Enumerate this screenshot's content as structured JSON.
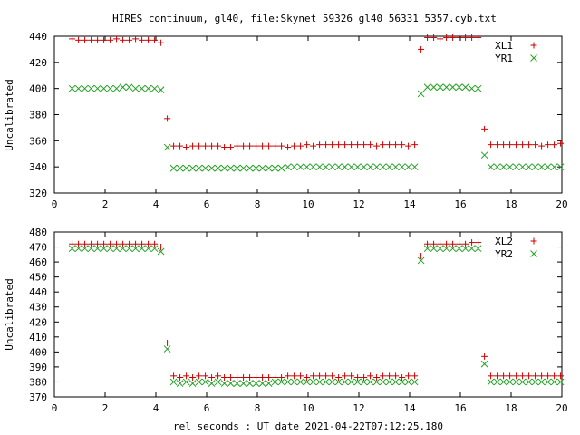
{
  "title": "HIRES continuum, gl40, file:Skynet_59326_gl40_56331_5357.cyb.txt",
  "xlabel": "rel seconds : UT date 2021-04-22T07:12:25.180",
  "colors": {
    "plus": "#cc0000",
    "cross": "#20a020",
    "axes": "#000000"
  },
  "chart_data": [
    {
      "type": "scatter",
      "ylabel": "Uncalibrated",
      "xlim": [
        0,
        20
      ],
      "ylim": [
        320,
        440
      ],
      "xticks": [
        0,
        2,
        4,
        6,
        8,
        10,
        12,
        14,
        16,
        18,
        20
      ],
      "yticks": [
        320,
        340,
        360,
        380,
        400,
        420,
        440
      ],
      "legend_position": "top-right",
      "series": [
        {
          "name": "XL1",
          "marker": "plus",
          "color": "#cc0000",
          "x": [
            0.7,
            0.95,
            1.2,
            1.45,
            1.7,
            1.95,
            2.2,
            2.45,
            2.7,
            2.95,
            3.2,
            3.45,
            3.7,
            3.95,
            4.2,
            4.45,
            4.7,
            4.95,
            5.2,
            5.45,
            5.7,
            5.95,
            6.2,
            6.45,
            6.7,
            6.95,
            7.2,
            7.45,
            7.7,
            7.95,
            8.2,
            8.45,
            8.7,
            8.95,
            9.2,
            9.45,
            9.7,
            9.95,
            10.2,
            10.45,
            10.7,
            10.95,
            11.2,
            11.45,
            11.7,
            11.95,
            12.2,
            12.45,
            12.7,
            12.95,
            13.2,
            13.45,
            13.7,
            13.95,
            14.2,
            14.45,
            14.7,
            14.95,
            15.2,
            15.45,
            15.7,
            15.95,
            16.2,
            16.45,
            16.7,
            16.95,
            17.2,
            17.45,
            17.7,
            17.95,
            18.2,
            18.45,
            18.7,
            18.95,
            19.2,
            19.45,
            19.7,
            19.95
          ],
          "y": [
            438,
            437,
            437,
            437,
            437,
            437,
            437,
            438,
            437,
            437,
            438,
            437,
            437,
            437,
            435,
            377,
            356,
            356,
            355,
            356,
            356,
            356,
            356,
            356,
            355,
            355,
            356,
            356,
            356,
            356,
            356,
            356,
            356,
            356,
            355,
            356,
            356,
            357,
            356,
            357,
            357,
            357,
            357,
            357,
            357,
            357,
            357,
            357,
            356,
            357,
            357,
            357,
            357,
            356,
            357,
            430,
            439,
            439,
            438,
            439,
            439,
            439,
            439,
            439,
            439,
            369,
            357,
            357,
            357,
            357,
            357,
            357,
            357,
            357,
            356,
            357,
            357,
            358
          ]
        },
        {
          "name": "YR1",
          "marker": "cross",
          "color": "#20a020",
          "x": [
            0.7,
            0.95,
            1.2,
            1.45,
            1.7,
            1.95,
            2.2,
            2.45,
            2.7,
            2.95,
            3.2,
            3.45,
            3.7,
            3.95,
            4.2,
            4.45,
            4.7,
            4.95,
            5.2,
            5.45,
            5.7,
            5.95,
            6.2,
            6.45,
            6.7,
            6.95,
            7.2,
            7.45,
            7.7,
            7.95,
            8.2,
            8.45,
            8.7,
            8.95,
            9.2,
            9.45,
            9.7,
            9.95,
            10.2,
            10.45,
            10.7,
            10.95,
            11.2,
            11.45,
            11.7,
            11.95,
            12.2,
            12.45,
            12.7,
            12.95,
            13.2,
            13.45,
            13.7,
            13.95,
            14.2,
            14.45,
            14.7,
            14.95,
            15.2,
            15.45,
            15.7,
            15.95,
            16.2,
            16.45,
            16.7,
            16.95,
            17.2,
            17.45,
            17.7,
            17.95,
            18.2,
            18.45,
            18.7,
            18.95,
            19.2,
            19.45,
            19.7,
            19.95
          ],
          "y": [
            400,
            400,
            400,
            400,
            400,
            400,
            400,
            400,
            401,
            401,
            400,
            400,
            400,
            400,
            399,
            355,
            339,
            339,
            339,
            339,
            339,
            339,
            339,
            339,
            339,
            339,
            339,
            339,
            339,
            339,
            339,
            339,
            339,
            339,
            340,
            340,
            340,
            340,
            340,
            340,
            340,
            340,
            340,
            340,
            340,
            340,
            340,
            340,
            340,
            340,
            340,
            340,
            340,
            340,
            340,
            396,
            401,
            401,
            401,
            401,
            401,
            401,
            401,
            400,
            400,
            349,
            340,
            340,
            340,
            340,
            340,
            340,
            340,
            340,
            340,
            340,
            340,
            340
          ]
        }
      ]
    },
    {
      "type": "scatter",
      "ylabel": "Uncalibrated",
      "xlim": [
        0,
        20
      ],
      "ylim": [
        370,
        480
      ],
      "xticks": [
        0,
        2,
        4,
        6,
        8,
        10,
        12,
        14,
        16,
        18,
        20
      ],
      "yticks": [
        370,
        380,
        390,
        400,
        410,
        420,
        430,
        440,
        450,
        460,
        470,
        480
      ],
      "legend_position": "top-right",
      "series": [
        {
          "name": "XL2",
          "marker": "plus",
          "color": "#cc0000",
          "x": [
            0.7,
            0.95,
            1.2,
            1.45,
            1.7,
            1.95,
            2.2,
            2.45,
            2.7,
            2.95,
            3.2,
            3.45,
            3.7,
            3.95,
            4.2,
            4.45,
            4.7,
            4.95,
            5.2,
            5.45,
            5.7,
            5.95,
            6.2,
            6.45,
            6.7,
            6.95,
            7.2,
            7.45,
            7.7,
            7.95,
            8.2,
            8.45,
            8.7,
            8.95,
            9.2,
            9.45,
            9.7,
            9.95,
            10.2,
            10.45,
            10.7,
            10.95,
            11.2,
            11.45,
            11.7,
            11.95,
            12.2,
            12.45,
            12.7,
            12.95,
            13.2,
            13.45,
            13.7,
            13.95,
            14.2,
            14.45,
            14.7,
            14.95,
            15.2,
            15.45,
            15.7,
            15.95,
            16.2,
            16.45,
            16.7,
            16.95,
            17.2,
            17.45,
            17.7,
            17.95,
            18.2,
            18.45,
            18.7,
            18.95,
            19.2,
            19.45,
            19.7,
            19.95
          ],
          "y": [
            472,
            472,
            472,
            472,
            472,
            472,
            472,
            472,
            472,
            472,
            472,
            472,
            472,
            472,
            470,
            406,
            384,
            383,
            384,
            383,
            384,
            384,
            383,
            384,
            383,
            383,
            383,
            383,
            383,
            383,
            383,
            383,
            383,
            383,
            384,
            384,
            384,
            383,
            384,
            384,
            384,
            384,
            383,
            384,
            384,
            383,
            383,
            384,
            383,
            384,
            384,
            384,
            383,
            384,
            384,
            464,
            472,
            472,
            472,
            472,
            472,
            472,
            472,
            473,
            473,
            397,
            384,
            384,
            384,
            384,
            384,
            384,
            384,
            384,
            384,
            384,
            384,
            384
          ]
        },
        {
          "name": "YR2",
          "marker": "cross",
          "color": "#20a020",
          "x": [
            0.7,
            0.95,
            1.2,
            1.45,
            1.7,
            1.95,
            2.2,
            2.45,
            2.7,
            2.95,
            3.2,
            3.45,
            3.7,
            3.95,
            4.2,
            4.45,
            4.7,
            4.95,
            5.2,
            5.45,
            5.7,
            5.95,
            6.2,
            6.45,
            6.7,
            6.95,
            7.2,
            7.45,
            7.7,
            7.95,
            8.2,
            8.45,
            8.7,
            8.95,
            9.2,
            9.45,
            9.7,
            9.95,
            10.2,
            10.45,
            10.7,
            10.95,
            11.2,
            11.45,
            11.7,
            11.95,
            12.2,
            12.45,
            12.7,
            12.95,
            13.2,
            13.45,
            13.7,
            13.95,
            14.2,
            14.45,
            14.7,
            14.95,
            15.2,
            15.45,
            15.7,
            15.95,
            16.2,
            16.45,
            16.7,
            16.95,
            17.2,
            17.45,
            17.7,
            17.95,
            18.2,
            18.45,
            18.7,
            18.95,
            19.2,
            19.45,
            19.7,
            19.95
          ],
          "y": [
            469,
            469,
            469,
            469,
            469,
            469,
            469,
            469,
            469,
            469,
            469,
            469,
            469,
            469,
            467,
            402,
            380,
            379,
            380,
            379,
            380,
            380,
            379,
            380,
            379,
            379,
            379,
            379,
            379,
            379,
            379,
            379,
            380,
            380,
            380,
            380,
            380,
            380,
            380,
            380,
            380,
            380,
            380,
            380,
            380,
            380,
            380,
            380,
            380,
            380,
            380,
            380,
            380,
            380,
            380,
            461,
            469,
            469,
            469,
            469,
            469,
            469,
            469,
            469,
            469,
            392,
            380,
            380,
            380,
            380,
            380,
            380,
            380,
            380,
            380,
            380,
            380,
            380
          ]
        }
      ]
    }
  ]
}
